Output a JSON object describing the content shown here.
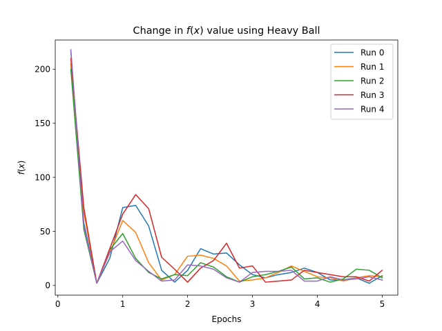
{
  "chart_data": {
    "type": "line",
    "title_prefix": "Change in ",
    "title_var": "f",
    "title_paren_open": "(",
    "title_arg": "x",
    "title_suffix": ") value using Heavy Ball",
    "xlabel": "Epochs",
    "ylabel_var": "f",
    "ylabel_paren_open": "(",
    "ylabel_arg": "x",
    "ylabel_paren_close": ")",
    "xlim": [
      -0.04,
      5.24
    ],
    "ylim": [
      -9,
      227
    ],
    "xticks": [
      0,
      1,
      2,
      3,
      4,
      5
    ],
    "yticks": [
      0,
      50,
      100,
      150,
      200
    ],
    "legend_position": "top-right",
    "grid": false,
    "x": [
      0.2,
      0.4,
      0.6,
      0.8,
      1.0,
      1.2,
      1.4,
      1.6,
      1.8,
      2.0,
      2.2,
      2.4,
      2.6,
      2.8,
      3.0,
      3.2,
      3.4,
      3.6,
      3.8,
      4.0,
      4.2,
      4.4,
      4.6,
      4.8,
      5.0
    ],
    "series": [
      {
        "name": "Run 0",
        "color": "#1f77b4",
        "values": [
          217,
          58,
          2,
          25,
          72,
          74,
          55,
          14,
          3,
          14,
          34,
          29,
          30,
          19,
          10,
          7,
          10,
          12,
          16,
          12,
          5,
          5,
          7,
          2,
          9
        ]
      },
      {
        "name": "Run 1",
        "color": "#ff7f0e",
        "values": [
          205,
          68,
          2,
          30,
          60,
          49,
          21,
          5,
          10,
          27,
          28,
          25,
          18,
          4,
          5,
          7,
          12,
          18,
          13,
          8,
          7,
          4,
          7,
          9,
          8
        ]
      },
      {
        "name": "Run 2",
        "color": "#2ca02c",
        "values": [
          200,
          52,
          2,
          33,
          48,
          25,
          12,
          6,
          10,
          9,
          21,
          17,
          8,
          3,
          8,
          10,
          13,
          17,
          6,
          7,
          3,
          6,
          15,
          14,
          7
        ]
      },
      {
        "name": "Run 3",
        "color": "#d62728",
        "values": [
          210,
          72,
          2,
          34,
          66,
          84,
          71,
          26,
          15,
          3,
          16,
          23,
          39,
          16,
          18,
          3,
          4,
          5,
          14,
          12,
          10,
          8,
          8,
          4,
          14
        ]
      },
      {
        "name": "Run 4",
        "color": "#9467bd",
        "values": [
          218,
          55,
          2,
          31,
          41,
          23,
          13,
          4,
          5,
          19,
          18,
          15,
          7,
          3,
          12,
          13,
          13,
          14,
          4,
          4,
          8,
          5,
          6,
          8,
          5
        ]
      }
    ]
  }
}
